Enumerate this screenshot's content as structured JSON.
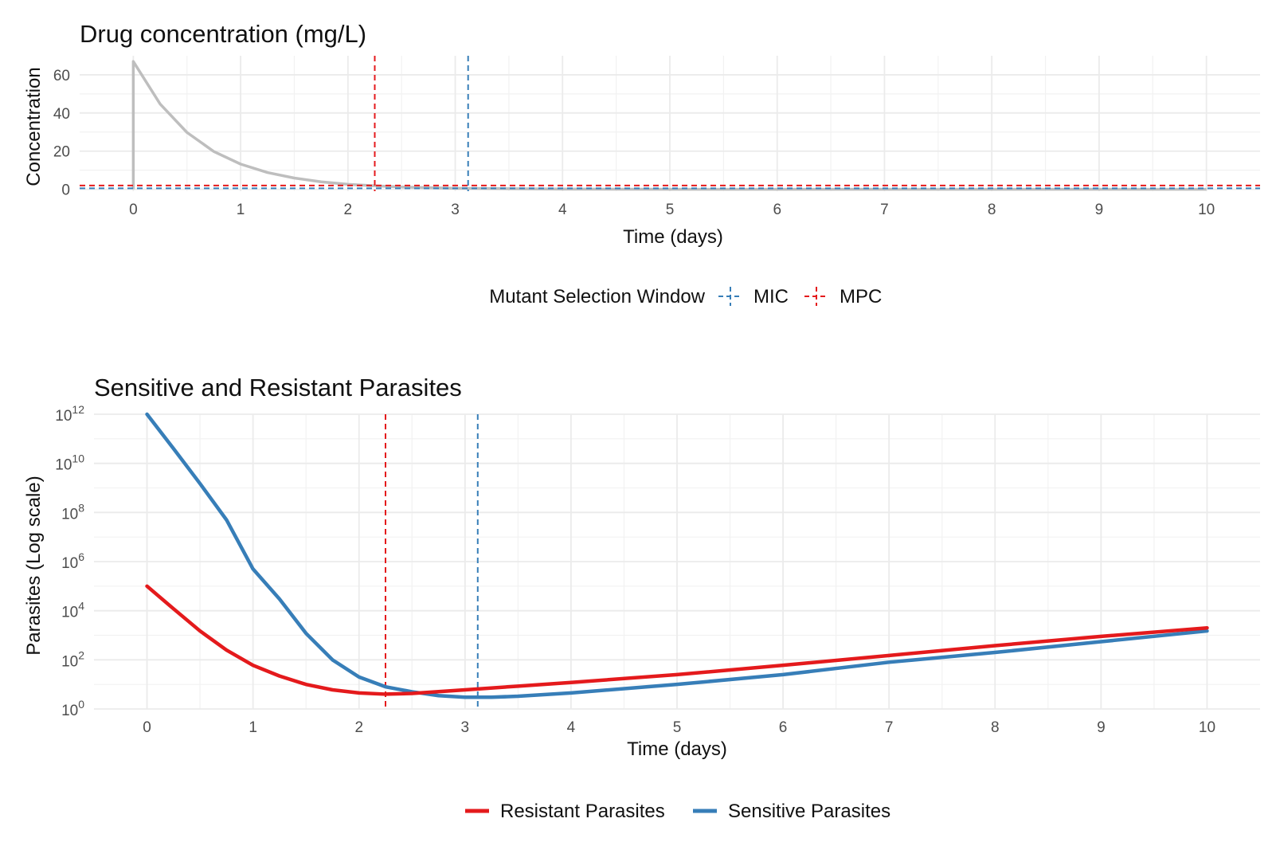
{
  "chart_data": [
    {
      "type": "line",
      "title": "Drug concentration (mg/L)",
      "xlabel": "Time (days)",
      "ylabel": "Concentration",
      "xlim": [
        -0.5,
        10.5
      ],
      "ylim": [
        -1,
        70
      ],
      "x_ticks": [
        0,
        1,
        2,
        3,
        4,
        5,
        6,
        7,
        8,
        9,
        10
      ],
      "y_ticks": [
        0,
        20,
        40,
        60
      ],
      "grid": true,
      "series": [
        {
          "color": "#bebebe",
          "x": [
            0,
            0,
            0.25,
            0.5,
            0.75,
            1,
            1.25,
            1.5,
            1.75,
            2,
            2.25,
            2.5,
            3,
            4,
            5,
            6,
            7,
            8,
            9,
            10
          ],
          "y": [
            0,
            67,
            44.7,
            29.8,
            19.8,
            13.2,
            8.8,
            5.9,
            3.9,
            2.6,
            1.8,
            1.2,
            0.5,
            0.1,
            0,
            0,
            0,
            0,
            0,
            0
          ]
        }
      ],
      "hlines": [
        {
          "name": "MIC",
          "y": 0.5,
          "color": "#377eb8"
        },
        {
          "name": "MPC",
          "y": 2.0,
          "color": "#e41a1c"
        }
      ],
      "vlines": [
        {
          "x": 2.25,
          "color": "#e41a1c"
        },
        {
          "x": 3.12,
          "color": "#377eb8"
        }
      ],
      "legend": {
        "title": "Mutant Selection Window",
        "position": "bottom",
        "items": [
          {
            "name": "MIC",
            "color": "#377eb8"
          },
          {
            "name": "MPC",
            "color": "#e41a1c"
          }
        ]
      }
    },
    {
      "type": "line",
      "title": "Sensitive and Resistant Parasites",
      "xlabel": "Time (days)",
      "ylabel": "Parasites (Log scale)",
      "log_y": true,
      "xlim": [
        -0.5,
        10.5
      ],
      "ylim": [
        1,
        1000000000000.0
      ],
      "x_ticks": [
        0,
        1,
        2,
        3,
        4,
        5,
        6,
        7,
        8,
        9,
        10
      ],
      "y_ticks": [
        {
          "base": "10",
          "exp": "0"
        },
        {
          "base": "10",
          "exp": "2"
        },
        {
          "base": "10",
          "exp": "4"
        },
        {
          "base": "10",
          "exp": "6"
        },
        {
          "base": "10",
          "exp": "8"
        },
        {
          "base": "10",
          "exp": "10"
        },
        {
          "base": "10",
          "exp": "12"
        }
      ],
      "grid": true,
      "series": [
        {
          "name": "Resistant Parasites",
          "color": "#e41a1c",
          "x": [
            0,
            0.25,
            0.5,
            0.75,
            1,
            1.25,
            1.5,
            1.75,
            2,
            2.25,
            2.5,
            3,
            3.5,
            4,
            5,
            6,
            7,
            8,
            9,
            10
          ],
          "y": [
            100000,
            12000,
            1500,
            250,
            60,
            22,
            10,
            6,
            4.5,
            4,
            4.3,
            6,
            8.5,
            12,
            25,
            60,
            150,
            380,
            900,
            2000
          ]
        },
        {
          "name": "Sensitive Parasites",
          "color": "#377eb8",
          "x": [
            0,
            0.25,
            0.5,
            0.75,
            1,
            1.25,
            1.5,
            1.75,
            2,
            2.25,
            2.5,
            2.75,
            3,
            3.25,
            3.5,
            4,
            5,
            6,
            7,
            8,
            9,
            10
          ],
          "y": [
            1000000000000.0,
            40000000000,
            1500000000,
            50000000,
            500000,
            30000,
            1200,
            100,
            20,
            8,
            5,
            3.5,
            3,
            3,
            3.3,
            4.5,
            10,
            25,
            80,
            200,
            550,
            1500
          ]
        }
      ],
      "vlines": [
        {
          "x": 2.25,
          "color": "#e41a1c"
        },
        {
          "x": 3.12,
          "color": "#377eb8"
        }
      ],
      "legend": {
        "position": "bottom",
        "items": [
          {
            "name": "Resistant Parasites",
            "color": "#e41a1c"
          },
          {
            "name": "Sensitive Parasites",
            "color": "#377eb8"
          }
        ]
      }
    }
  ]
}
